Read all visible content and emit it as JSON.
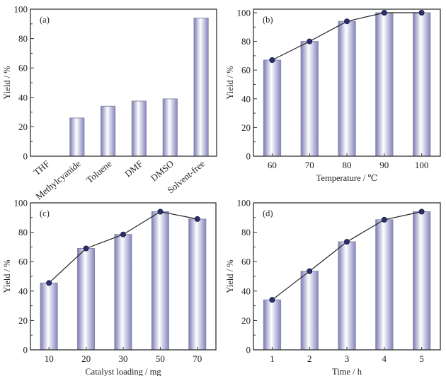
{
  "chart_data": [
    {
      "id": "a",
      "type": "bar",
      "panel_label": "(a)",
      "title": "",
      "xlabel": "",
      "ylabel": "Yield / %",
      "ylim": [
        0,
        100
      ],
      "yticks": [
        0,
        20,
        40,
        60,
        80,
        100
      ],
      "categories": [
        "THF",
        "Methylcyanide",
        "Toluene",
        "DMF",
        "DMSO",
        "Solvent-free"
      ],
      "values": [
        0,
        26,
        34,
        37.5,
        39,
        94
      ],
      "show_line": false,
      "rotated_xticks": true,
      "grid": false
    },
    {
      "id": "b",
      "type": "bar",
      "panel_label": "(b)",
      "title": "",
      "xlabel": "Temperature / ℃",
      "ylabel": "Yield / %",
      "ylim": [
        0,
        102
      ],
      "yticks": [
        0,
        20,
        40,
        60,
        80,
        100
      ],
      "categories": [
        "60",
        "70",
        "80",
        "90",
        "100"
      ],
      "values": [
        67,
        80,
        94,
        100,
        100
      ],
      "show_line": true,
      "rotated_xticks": false,
      "grid": false
    },
    {
      "id": "c",
      "type": "bar",
      "panel_label": "(c)",
      "title": "",
      "xlabel": "Catalyst loading / mg",
      "ylabel": "Yield / %",
      "ylim": [
        0,
        100
      ],
      "yticks": [
        0,
        20,
        40,
        60,
        80,
        100
      ],
      "categories": [
        "10",
        "20",
        "30",
        "50",
        "70"
      ],
      "values": [
        45.5,
        69,
        78.5,
        94,
        89
      ],
      "show_line": true,
      "rotated_xticks": false,
      "grid": false
    },
    {
      "id": "d",
      "type": "bar",
      "panel_label": "(d)",
      "title": "",
      "xlabel": "Time / h",
      "ylabel": "Yield / %",
      "ylim": [
        0,
        100
      ],
      "yticks": [
        0,
        20,
        40,
        60,
        80,
        100
      ],
      "categories": [
        "1",
        "2",
        "3",
        "4",
        "5"
      ],
      "values": [
        34,
        53.5,
        73.5,
        88.5,
        94
      ],
      "show_line": true,
      "rotated_xticks": false,
      "grid": false
    }
  ],
  "colors": {
    "bar_edge": "#7c7cb8",
    "bar_mid": "#ffffff",
    "marker": "#2b2f6e",
    "line": "#222222",
    "frame": "#333333"
  }
}
